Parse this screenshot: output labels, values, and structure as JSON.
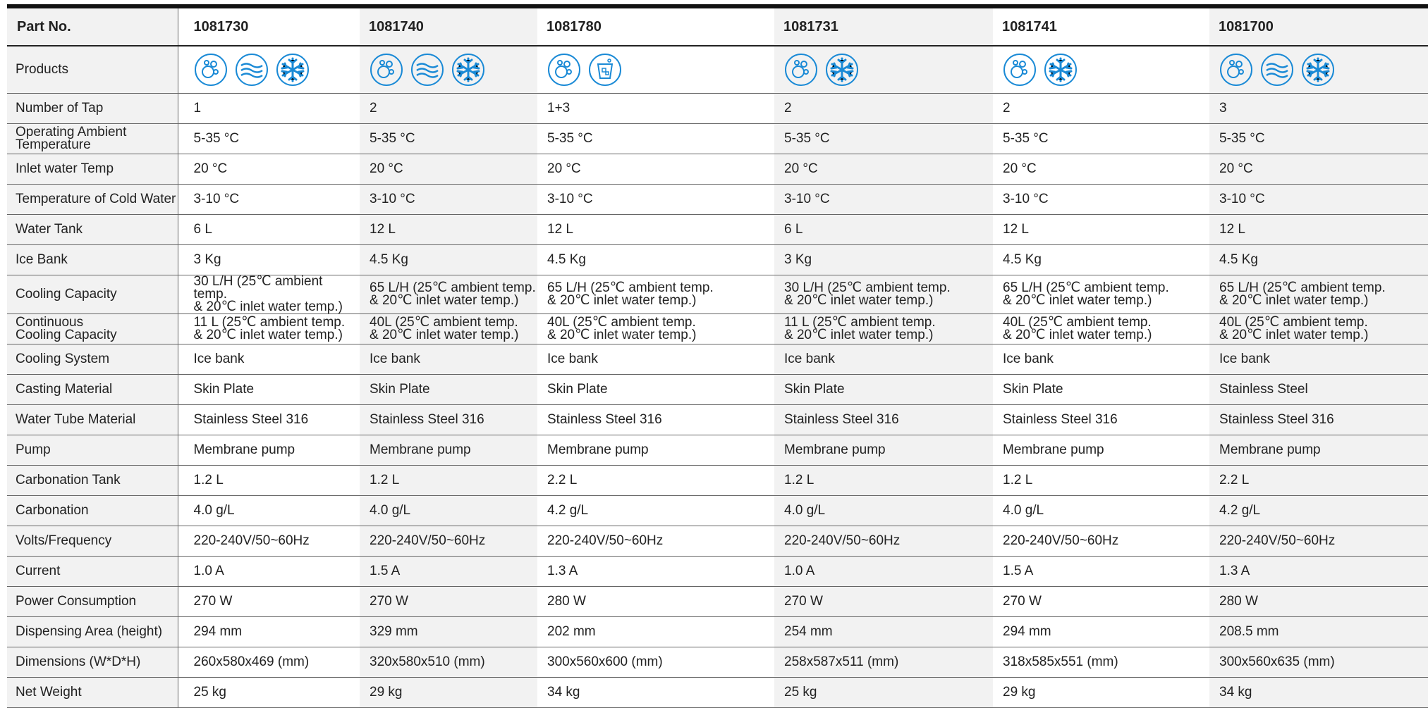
{
  "table": {
    "header": [
      "Part No.",
      "1081730",
      "1081740",
      "1081780",
      "1081731",
      "1081741",
      "1081700"
    ],
    "products_label": "Products",
    "rows": [
      [
        "Number of Tap",
        "1",
        "2",
        "1+3",
        "2",
        "2",
        "3"
      ],
      [
        "Operating Ambient\nTemperature",
        "5-35 °C",
        "5-35 °C",
        "5-35 °C",
        "5-35 °C",
        "5-35 °C",
        "5-35 °C"
      ],
      [
        "Inlet water Temp",
        "20 °C",
        "20 °C",
        "20 °C",
        "20 °C",
        "20 °C",
        "20 °C"
      ],
      [
        "Temperature of Cold Water",
        "3-10 °C",
        "3-10 °C",
        "3-10 °C",
        "3-10 °C",
        "3-10 °C",
        "3-10 °C"
      ],
      [
        "Water Tank",
        "6 L",
        "12 L",
        "12 L",
        "6 L",
        "12 L",
        "12 L"
      ],
      [
        "Ice Bank",
        "3 Kg",
        "4.5 Kg",
        "4.5 Kg",
        "3 Kg",
        "4.5 Kg",
        "4.5 Kg"
      ],
      [
        "Cooling Capacity",
        "30 L/H (25℃ ambient temp.\n & 20℃ inlet water temp.)",
        "65 L/H (25℃ ambient temp.\n& 20℃ inlet water temp.)",
        "65 L/H (25℃ ambient temp.\n& 20℃ inlet water temp.)",
        "30 L/H (25℃ ambient temp.\n& 20℃ inlet water temp.)",
        "65 L/H (25℃ ambient temp.\n& 20℃ inlet water temp.)",
        "65 L/H (25℃ ambient temp.\n& 20℃ inlet water temp.)"
      ],
      [
        "Continuous\nCooling Capacity",
        "11 L  (25℃ ambient temp.\n& 20℃ inlet water temp.)",
        "40L  (25℃ ambient temp.\n& 20℃ inlet water temp.)",
        "40L  (25℃ ambient temp.\n& 20℃ inlet water temp.)",
        "11 L  (25℃ ambient temp.\n& 20℃ inlet water temp.)",
        "40L  (25℃ ambient temp.\n& 20℃ inlet water temp.)",
        "40L  (25℃ ambient temp.\n& 20℃ inlet water temp.)"
      ],
      [
        "Cooling System",
        "Ice bank",
        "Ice bank",
        "Ice bank",
        "Ice bank",
        "Ice bank",
        "Ice bank"
      ],
      [
        "Casting Material",
        "Skin Plate",
        "Skin Plate",
        "Skin Plate",
        "Skin Plate",
        "Skin Plate",
        "Stainless Steel"
      ],
      [
        "Water Tube Material",
        "Stainless Steel 316",
        "Stainless Steel 316",
        "Stainless Steel 316",
        "Stainless Steel 316",
        "Stainless Steel 316",
        "Stainless Steel 316"
      ],
      [
        "Pump",
        "Membrane pump",
        "Membrane pump",
        "Membrane pump",
        "Membrane pump",
        "Membrane pump",
        "Membrane pump"
      ],
      [
        "Carbonation Tank",
        "1.2 L",
        "1.2 L",
        "2.2 L",
        "1.2 L",
        "1.2 L",
        "2.2 L"
      ],
      [
        "Carbonation",
        "4.0 g/L",
        "4.0 g/L",
        "4.2 g/L",
        "4.0 g/L",
        "4.0 g/L",
        "4.2 g/L"
      ],
      [
        "Volts/Frequency",
        "220-240V/50~60Hz",
        "220-240V/50~60Hz",
        "220-240V/50~60Hz",
        "220-240V/50~60Hz",
        "220-240V/50~60Hz",
        "220-240V/50~60Hz"
      ],
      [
        "Current",
        "1.0 A",
        "1.5 A",
        "1.3 A",
        "1.0 A",
        "1.5 A",
        "1.3 A"
      ],
      [
        "Power Consumption",
        "270 W",
        "270 W",
        "280 W",
        "270 W",
        "270 W",
        "280 W"
      ],
      [
        "Dispensing Area (height)",
        "294 mm",
        "329 mm",
        "202 mm",
        "254 mm",
        "294 mm",
        "208.5 mm"
      ],
      [
        "Dimensions  (W*D*H)",
        "260x580x469 (mm)",
        "320x580x510 (mm)",
        "300x560x600  (mm)",
        "258x587x511 (mm)",
        "318x585x551 (mm)",
        "300x560x635  (mm)"
      ],
      [
        "Net Weight",
        "25 kg",
        "29 kg",
        "34 kg",
        "25 kg",
        "29 kg",
        "34 kg"
      ]
    ]
  }
}
